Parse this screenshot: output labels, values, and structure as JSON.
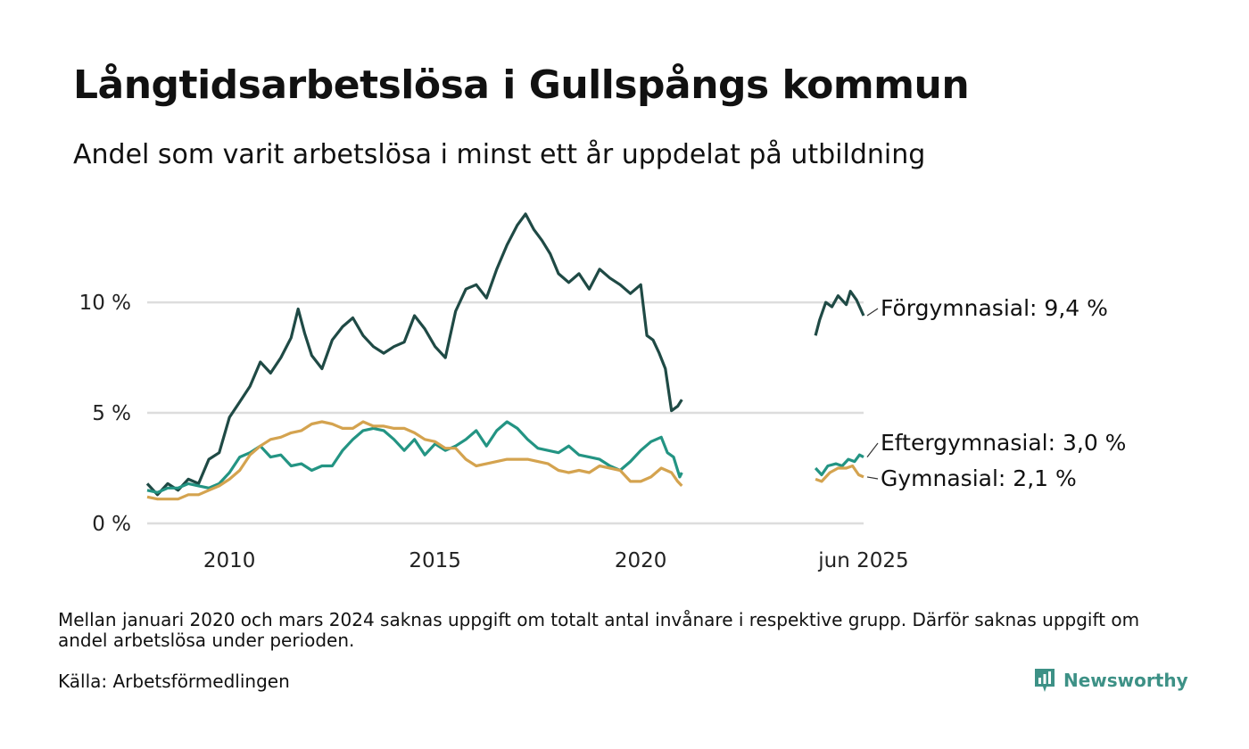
{
  "title": "Långtidsarbetslösa i Gullspångs kommun",
  "subtitle": "Andel som varit arbetslösa i minst ett år uppdelat på utbildning",
  "footnote": "Mellan januari 2020 och mars 2024 saknas uppgift om totalt antal invånare i respektive grupp. Därför saknas uppgift om andel arbetslösa under perioden.",
  "source": "Källa: Arbetsförmedlingen",
  "brand": {
    "name": "Newsworthy",
    "icon": "newsworthy-logo-icon",
    "color": "#3d9186"
  },
  "chart_data": {
    "type": "line",
    "y_ticks": [
      {
        "value": 0,
        "label": "0 %"
      },
      {
        "value": 5,
        "label": "5 %"
      },
      {
        "value": 10,
        "label": "10 %"
      }
    ],
    "x_ticks": [
      {
        "value": 2010.0,
        "label": "2010"
      },
      {
        "value": 2015.0,
        "label": "2015"
      },
      {
        "value": 2020.0,
        "label": "2020"
      },
      {
        "value": 2025.42,
        "label": "jun 2025"
      }
    ],
    "xlim": [
      2008.0,
      2025.42
    ],
    "ylim": [
      0,
      14.2
    ],
    "grid": true,
    "series": [
      {
        "name": "Förgymnasial",
        "label": "Förgymnasial: 9,4 %",
        "color": "#1f4a45",
        "points": [
          [
            2008.0,
            1.8
          ],
          [
            2008.25,
            1.3
          ],
          [
            2008.5,
            1.8
          ],
          [
            2008.75,
            1.5
          ],
          [
            2009.0,
            2.0
          ],
          [
            2009.25,
            1.8
          ],
          [
            2009.5,
            2.9
          ],
          [
            2009.75,
            3.2
          ],
          [
            2010.0,
            4.8
          ],
          [
            2010.25,
            5.5
          ],
          [
            2010.5,
            6.2
          ],
          [
            2010.75,
            7.3
          ],
          [
            2011.0,
            6.8
          ],
          [
            2011.25,
            7.5
          ],
          [
            2011.5,
            8.4
          ],
          [
            2011.67,
            9.7
          ],
          [
            2011.83,
            8.6
          ],
          [
            2012.0,
            7.6
          ],
          [
            2012.25,
            7.0
          ],
          [
            2012.5,
            8.3
          ],
          [
            2012.75,
            8.9
          ],
          [
            2013.0,
            9.3
          ],
          [
            2013.25,
            8.5
          ],
          [
            2013.5,
            8.0
          ],
          [
            2013.75,
            7.7
          ],
          [
            2014.0,
            8.0
          ],
          [
            2014.25,
            8.2
          ],
          [
            2014.5,
            9.4
          ],
          [
            2014.75,
            8.8
          ],
          [
            2015.0,
            8.0
          ],
          [
            2015.25,
            7.5
          ],
          [
            2015.5,
            9.6
          ],
          [
            2015.75,
            10.6
          ],
          [
            2016.0,
            10.8
          ],
          [
            2016.25,
            10.2
          ],
          [
            2016.5,
            11.5
          ],
          [
            2016.75,
            12.6
          ],
          [
            2017.0,
            13.5
          ],
          [
            2017.2,
            14.0
          ],
          [
            2017.4,
            13.3
          ],
          [
            2017.6,
            12.8
          ],
          [
            2017.8,
            12.2
          ],
          [
            2018.0,
            11.3
          ],
          [
            2018.25,
            10.9
          ],
          [
            2018.5,
            11.3
          ],
          [
            2018.75,
            10.6
          ],
          [
            2019.0,
            11.5
          ],
          [
            2019.25,
            11.1
          ],
          [
            2019.5,
            10.8
          ],
          [
            2019.75,
            10.4
          ],
          [
            2020.0,
            10.8
          ],
          [
            2020.15,
            8.5
          ],
          [
            2020.3,
            8.3
          ],
          [
            2020.45,
            7.7
          ],
          [
            2020.6,
            7.0
          ],
          [
            2020.75,
            5.1
          ],
          [
            2020.9,
            5.3
          ],
          [
            2021.0,
            5.6
          ]
        ],
        "points_late": [
          [
            2024.25,
            8.5
          ],
          [
            2024.35,
            9.2
          ],
          [
            2024.5,
            10.0
          ],
          [
            2024.65,
            9.8
          ],
          [
            2024.8,
            10.3
          ],
          [
            2025.0,
            9.9
          ],
          [
            2025.1,
            10.5
          ],
          [
            2025.25,
            10.1
          ],
          [
            2025.42,
            9.4
          ]
        ]
      },
      {
        "name": "Eftergymnasial",
        "label": "Eftergymnasial: 3,0 %",
        "color": "#239483",
        "points": [
          [
            2008.0,
            1.5
          ],
          [
            2008.25,
            1.4
          ],
          [
            2008.5,
            1.6
          ],
          [
            2008.75,
            1.6
          ],
          [
            2009.0,
            1.8
          ],
          [
            2009.25,
            1.7
          ],
          [
            2009.5,
            1.6
          ],
          [
            2009.75,
            1.8
          ],
          [
            2010.0,
            2.3
          ],
          [
            2010.25,
            3.0
          ],
          [
            2010.5,
            3.2
          ],
          [
            2010.75,
            3.5
          ],
          [
            2011.0,
            3.0
          ],
          [
            2011.25,
            3.1
          ],
          [
            2011.5,
            2.6
          ],
          [
            2011.75,
            2.7
          ],
          [
            2012.0,
            2.4
          ],
          [
            2012.25,
            2.6
          ],
          [
            2012.5,
            2.6
          ],
          [
            2012.75,
            3.3
          ],
          [
            2013.0,
            3.8
          ],
          [
            2013.25,
            4.2
          ],
          [
            2013.5,
            4.3
          ],
          [
            2013.75,
            4.2
          ],
          [
            2014.0,
            3.8
          ],
          [
            2014.25,
            3.3
          ],
          [
            2014.5,
            3.8
          ],
          [
            2014.75,
            3.1
          ],
          [
            2015.0,
            3.6
          ],
          [
            2015.25,
            3.3
          ],
          [
            2015.5,
            3.5
          ],
          [
            2015.75,
            3.8
          ],
          [
            2016.0,
            4.2
          ],
          [
            2016.25,
            3.5
          ],
          [
            2016.5,
            4.2
          ],
          [
            2016.75,
            4.6
          ],
          [
            2017.0,
            4.3
          ],
          [
            2017.25,
            3.8
          ],
          [
            2017.5,
            3.4
          ],
          [
            2017.75,
            3.3
          ],
          [
            2018.0,
            3.2
          ],
          [
            2018.25,
            3.5
          ],
          [
            2018.5,
            3.1
          ],
          [
            2018.75,
            3.0
          ],
          [
            2019.0,
            2.9
          ],
          [
            2019.25,
            2.6
          ],
          [
            2019.5,
            2.4
          ],
          [
            2019.75,
            2.8
          ],
          [
            2020.0,
            3.3
          ],
          [
            2020.25,
            3.7
          ],
          [
            2020.5,
            3.9
          ],
          [
            2020.65,
            3.2
          ],
          [
            2020.8,
            3.0
          ],
          [
            2020.95,
            2.1
          ],
          [
            2021.0,
            2.3
          ]
        ],
        "points_late": [
          [
            2024.25,
            2.5
          ],
          [
            2024.4,
            2.2
          ],
          [
            2024.55,
            2.6
          ],
          [
            2024.75,
            2.7
          ],
          [
            2024.9,
            2.6
          ],
          [
            2025.05,
            2.9
          ],
          [
            2025.2,
            2.8
          ],
          [
            2025.32,
            3.1
          ],
          [
            2025.42,
            3.0
          ]
        ]
      },
      {
        "name": "Gymnasial",
        "label": "Gymnasial: 2,1 %",
        "color": "#d4a34f",
        "points": [
          [
            2008.0,
            1.2
          ],
          [
            2008.25,
            1.1
          ],
          [
            2008.5,
            1.1
          ],
          [
            2008.75,
            1.1
          ],
          [
            2009.0,
            1.3
          ],
          [
            2009.25,
            1.3
          ],
          [
            2009.5,
            1.5
          ],
          [
            2009.75,
            1.7
          ],
          [
            2010.0,
            2.0
          ],
          [
            2010.25,
            2.4
          ],
          [
            2010.5,
            3.1
          ],
          [
            2010.75,
            3.5
          ],
          [
            2011.0,
            3.8
          ],
          [
            2011.25,
            3.9
          ],
          [
            2011.5,
            4.1
          ],
          [
            2011.75,
            4.2
          ],
          [
            2012.0,
            4.5
          ],
          [
            2012.25,
            4.6
          ],
          [
            2012.5,
            4.5
          ],
          [
            2012.75,
            4.3
          ],
          [
            2013.0,
            4.3
          ],
          [
            2013.25,
            4.6
          ],
          [
            2013.5,
            4.4
          ],
          [
            2013.75,
            4.4
          ],
          [
            2014.0,
            4.3
          ],
          [
            2014.25,
            4.3
          ],
          [
            2014.5,
            4.1
          ],
          [
            2014.75,
            3.8
          ],
          [
            2015.0,
            3.7
          ],
          [
            2015.25,
            3.4
          ],
          [
            2015.5,
            3.4
          ],
          [
            2015.75,
            2.9
          ],
          [
            2016.0,
            2.6
          ],
          [
            2016.25,
            2.7
          ],
          [
            2016.5,
            2.8
          ],
          [
            2016.75,
            2.9
          ],
          [
            2017.0,
            2.9
          ],
          [
            2017.25,
            2.9
          ],
          [
            2017.5,
            2.8
          ],
          [
            2017.75,
            2.7
          ],
          [
            2018.0,
            2.4
          ],
          [
            2018.25,
            2.3
          ],
          [
            2018.5,
            2.4
          ],
          [
            2018.75,
            2.3
          ],
          [
            2019.0,
            2.6
          ],
          [
            2019.25,
            2.5
          ],
          [
            2019.5,
            2.4
          ],
          [
            2019.75,
            1.9
          ],
          [
            2020.0,
            1.9
          ],
          [
            2020.25,
            2.1
          ],
          [
            2020.5,
            2.5
          ],
          [
            2020.75,
            2.3
          ],
          [
            2020.9,
            1.9
          ],
          [
            2021.0,
            1.7
          ]
        ],
        "points_late": [
          [
            2024.25,
            2.0
          ],
          [
            2024.4,
            1.9
          ],
          [
            2024.6,
            2.3
          ],
          [
            2024.8,
            2.5
          ],
          [
            2025.0,
            2.5
          ],
          [
            2025.15,
            2.6
          ],
          [
            2025.3,
            2.2
          ],
          [
            2025.42,
            2.1
          ]
        ]
      }
    ]
  }
}
